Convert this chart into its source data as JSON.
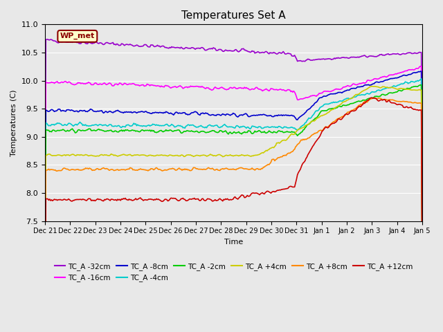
{
  "title": "Temperatures Set A",
  "xlabel": "Time",
  "ylabel": "Temperatures (C)",
  "ylim": [
    7.5,
    11.0
  ],
  "background_color": "#e8e8e8",
  "plot_bg_color": "#e8e8e8",
  "wp_met_label": "WP_met",
  "legend_entries": [
    {
      "label": "TC_A -32cm",
      "color": "#9900cc"
    },
    {
      "label": "TC_A -16cm",
      "color": "#ff00ff"
    },
    {
      "label": "TC_A -8cm",
      "color": "#0000cc"
    },
    {
      "label": "TC_A -4cm",
      "color": "#00cccc"
    },
    {
      "label": "TC_A -2cm",
      "color": "#00cc00"
    },
    {
      "label": "TC_A +4cm",
      "color": "#cccc00"
    },
    {
      "label": "TC_A +8cm",
      "color": "#ff8800"
    },
    {
      "label": "TC_A +12cm",
      "color": "#cc0000"
    }
  ],
  "tick_labels": [
    "Dec 21",
    "Dec 22",
    "Dec 23",
    "Dec 24",
    "Dec 25",
    "Dec 26",
    "Dec 27",
    "Dec 28",
    "Dec 29",
    "Dec 30",
    "Dec 31",
    "Jan 1",
    "Jan 2",
    "Jan 3",
    "Jan 4",
    "Jan 5"
  ],
  "num_points": 400
}
